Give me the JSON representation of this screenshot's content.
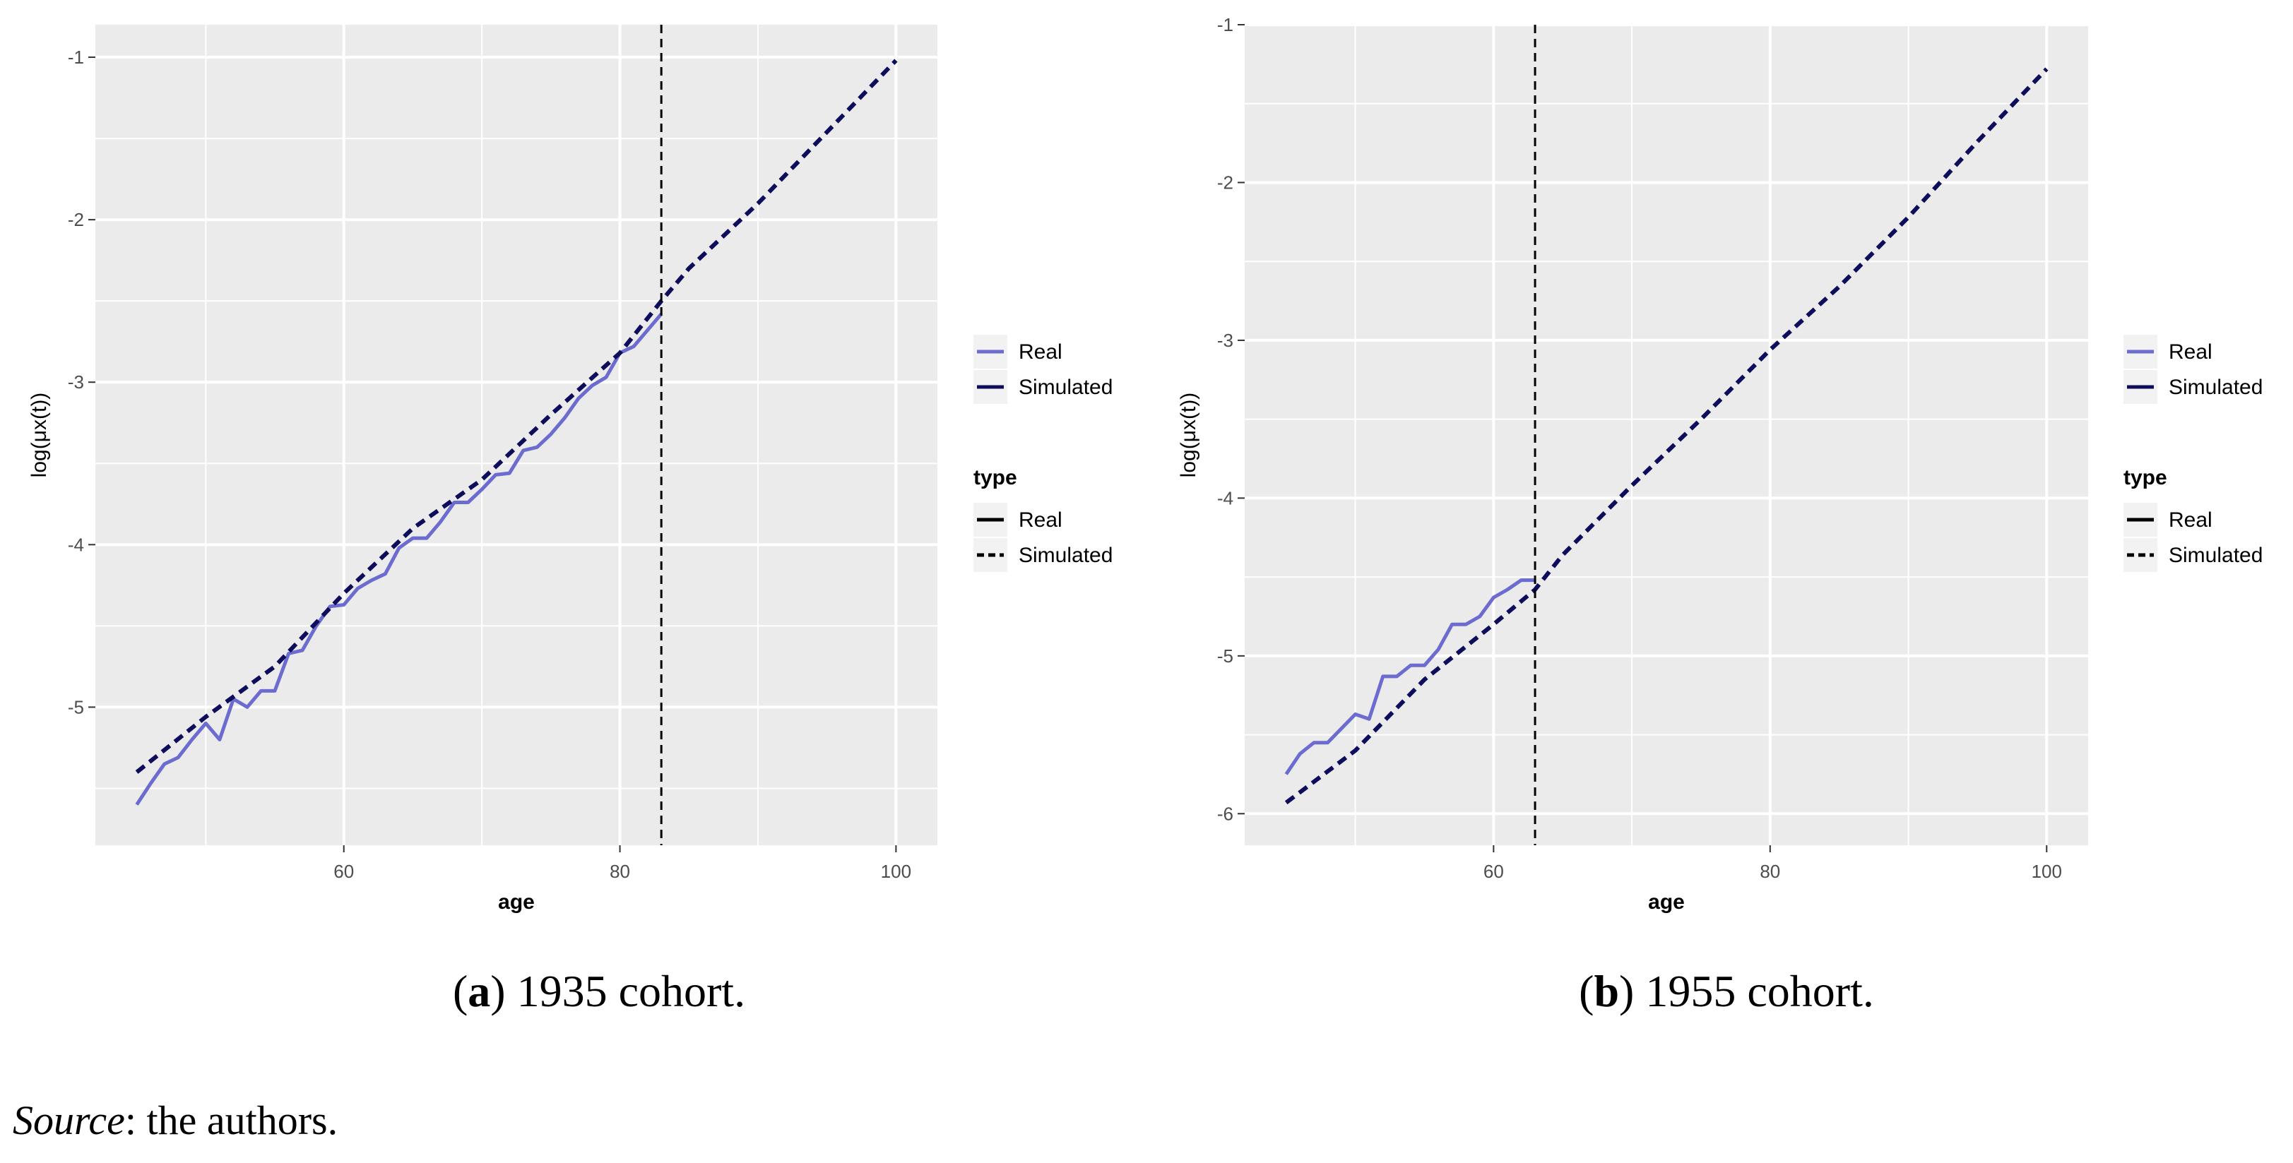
{
  "figure": {
    "captions": [
      {
        "letter": "a",
        "text": ") 1935 cohort."
      },
      {
        "letter": "b",
        "text": ") 1955 cohort."
      }
    ],
    "source_label": "Source",
    "source_text": ": the authors."
  },
  "colors": {
    "panel_bg": "#ebebeb",
    "grid": "#ffffff",
    "real": "#6b6bd0",
    "simulated": "#0d0d5c",
    "vline": "#000000",
    "legend_key_bg": "#f2f2f2"
  },
  "chart_data": [
    {
      "type": "line",
      "title": "",
      "xlabel": "age",
      "ylabel": "log(μx(t))",
      "xlim": [
        42,
        103
      ],
      "ylim": [
        -5.85,
        -0.8
      ],
      "x_ticks": [
        60,
        80,
        100
      ],
      "y_ticks": [
        -5,
        -4,
        -3,
        -2,
        -1
      ],
      "vline_x": 83,
      "legend": {
        "colour_entries": [
          "Real",
          "Simulated"
        ],
        "linetype_title": "type",
        "linetype_entries": [
          "Real",
          "Simulated"
        ]
      },
      "series": [
        {
          "name": "Real",
          "linetype": "solid",
          "x": [
            45,
            46,
            47,
            48,
            49,
            50,
            51,
            52,
            53,
            54,
            55,
            56,
            57,
            58,
            59,
            60,
            61,
            62,
            63,
            64,
            65,
            66,
            67,
            68,
            69,
            70,
            71,
            72,
            73,
            74,
            75,
            76,
            77,
            78,
            79,
            80,
            81,
            82,
            83
          ],
          "y": [
            -5.6,
            -5.47,
            -5.35,
            -5.31,
            -5.2,
            -5.1,
            -5.2,
            -4.95,
            -5.0,
            -4.9,
            -4.9,
            -4.67,
            -4.65,
            -4.5,
            -4.38,
            -4.37,
            -4.27,
            -4.22,
            -4.18,
            -4.02,
            -3.96,
            -3.96,
            -3.86,
            -3.74,
            -3.74,
            -3.66,
            -3.57,
            -3.56,
            -3.42,
            -3.4,
            -3.32,
            -3.22,
            -3.1,
            -3.02,
            -2.97,
            -2.82,
            -2.78,
            -2.68,
            -2.58
          ]
        },
        {
          "name": "Simulated",
          "linetype": "dashed",
          "x": [
            45,
            50,
            55,
            60,
            65,
            70,
            75,
            80,
            83,
            85,
            90,
            95,
            100
          ],
          "y": [
            -5.4,
            -5.06,
            -4.75,
            -4.3,
            -3.9,
            -3.6,
            -3.2,
            -2.82,
            -2.5,
            -2.3,
            -1.9,
            -1.46,
            -1.02
          ]
        }
      ]
    },
    {
      "type": "line",
      "title": "",
      "xlabel": "age",
      "ylabel": "log(μx(t))",
      "xlim": [
        42,
        103
      ],
      "ylim": [
        -6.2,
        -1.0
      ],
      "x_ticks": [
        60,
        80,
        100
      ],
      "y_ticks": [
        -6,
        -5,
        -4,
        -3,
        -2,
        -1
      ],
      "vline_x": 63,
      "legend": {
        "colour_entries": [
          "Real",
          "Simulated"
        ],
        "linetype_title": "type",
        "linetype_entries": [
          "Real",
          "Simulated"
        ]
      },
      "series": [
        {
          "name": "Real",
          "linetype": "solid",
          "x": [
            45,
            46,
            47,
            48,
            49,
            50,
            51,
            52,
            53,
            54,
            55,
            56,
            57,
            58,
            59,
            60,
            61,
            62,
            63
          ],
          "y": [
            -5.75,
            -5.62,
            -5.55,
            -5.55,
            -5.46,
            -5.37,
            -5.4,
            -5.13,
            -5.13,
            -5.06,
            -5.06,
            -4.96,
            -4.8,
            -4.8,
            -4.75,
            -4.63,
            -4.58,
            -4.52,
            -4.52
          ]
        },
        {
          "name": "Simulated",
          "linetype": "dashed",
          "x": [
            45,
            50,
            55,
            60,
            63,
            65,
            70,
            75,
            80,
            85,
            90,
            95,
            100
          ],
          "y": [
            -5.93,
            -5.6,
            -5.15,
            -4.8,
            -4.58,
            -4.36,
            -3.92,
            -3.5,
            -3.06,
            -2.66,
            -2.22,
            -1.74,
            -1.28
          ]
        }
      ]
    }
  ]
}
